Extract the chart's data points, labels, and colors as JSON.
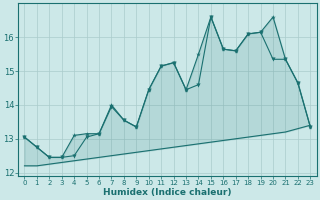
{
  "title": "",
  "xlabel": "Humidex (Indice chaleur)",
  "bg_color": "#cce8e8",
  "grid_color": "#aacccc",
  "line_color": "#1a7070",
  "xlim": [
    -0.5,
    23.5
  ],
  "ylim": [
    11.9,
    17.0
  ],
  "yticks": [
    12,
    13,
    14,
    15,
    16
  ],
  "xticks": [
    0,
    1,
    2,
    3,
    4,
    5,
    6,
    7,
    8,
    9,
    10,
    11,
    12,
    13,
    14,
    15,
    16,
    17,
    18,
    19,
    20,
    21,
    22,
    23
  ],
  "x_bot": [
    0,
    1,
    2,
    3,
    4,
    5,
    6,
    7,
    8,
    9,
    10,
    11,
    12,
    13,
    14,
    15,
    16,
    17,
    18,
    19,
    20,
    21,
    22,
    23
  ],
  "y_bot": [
    12.2,
    12.2,
    12.25,
    12.3,
    12.35,
    12.4,
    12.45,
    12.5,
    12.55,
    12.6,
    12.65,
    12.7,
    12.75,
    12.8,
    12.85,
    12.9,
    12.95,
    13.0,
    13.05,
    13.1,
    13.15,
    13.2,
    13.3,
    13.4
  ],
  "x_top": [
    0,
    1,
    2,
    3,
    4,
    5,
    6,
    7,
    8,
    9,
    10,
    11,
    12,
    13,
    14,
    15,
    16,
    17,
    18,
    19,
    20,
    21,
    22,
    23
  ],
  "y_top": [
    13.05,
    12.75,
    12.45,
    12.45,
    13.1,
    13.15,
    13.15,
    14.0,
    13.55,
    13.35,
    14.45,
    15.15,
    15.25,
    14.45,
    15.5,
    16.6,
    15.65,
    15.6,
    16.1,
    16.15,
    16.6,
    15.35,
    14.65,
    13.35
  ],
  "x_mid": [
    0,
    1,
    2,
    3,
    4,
    5,
    6,
    7,
    8,
    9,
    10,
    11,
    12,
    13,
    14,
    15,
    16,
    17,
    18,
    19,
    20,
    21,
    22,
    23
  ],
  "y_mid": [
    13.05,
    12.75,
    12.45,
    12.45,
    12.5,
    13.05,
    13.15,
    13.95,
    13.55,
    13.35,
    14.45,
    15.15,
    15.25,
    14.45,
    14.6,
    16.6,
    15.65,
    15.6,
    16.1,
    16.15,
    15.35,
    15.35,
    14.65,
    13.35
  ]
}
